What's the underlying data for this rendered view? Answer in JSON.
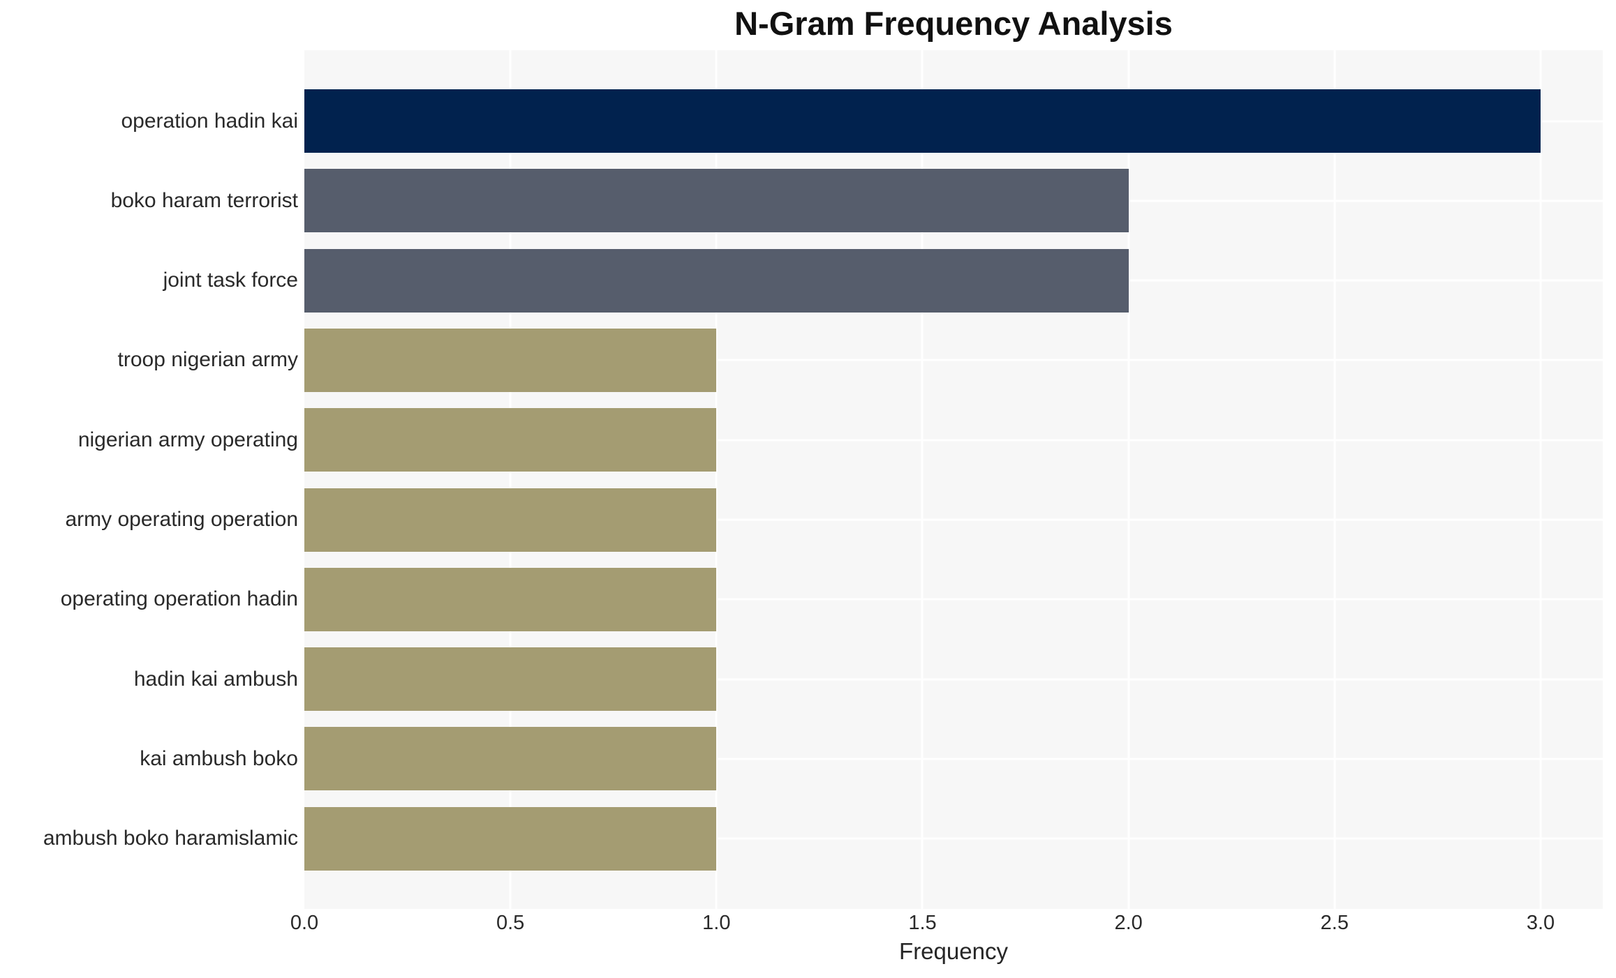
{
  "chart_data": {
    "type": "bar",
    "orientation": "horizontal",
    "title": "N-Gram Frequency Analysis",
    "xlabel": "Frequency",
    "ylabel": "",
    "categories": [
      "operation hadin kai",
      "boko haram terrorist",
      "joint task force",
      "troop nigerian army",
      "nigerian army operating",
      "army operating operation",
      "operating operation hadin",
      "hadin kai ambush",
      "kai ambush boko",
      "ambush boko haramislamic"
    ],
    "values": [
      3,
      2,
      2,
      1,
      1,
      1,
      1,
      1,
      1,
      1
    ],
    "bar_colors": [
      "#01224E",
      "#565D6C",
      "#565D6C",
      "#A49C72",
      "#A49C72",
      "#A49C72",
      "#A49C72",
      "#A49C72",
      "#A49C72",
      "#A49C72"
    ],
    "xticks": [
      "0.0",
      "0.5",
      "1.0",
      "1.5",
      "2.0",
      "2.5",
      "3.0"
    ],
    "xtick_values": [
      0,
      0.5,
      1,
      1.5,
      2,
      2.5,
      3
    ],
    "xlim": [
      0,
      3.15
    ],
    "grid": true,
    "legend": false,
    "plot_background": "#F7F7F7",
    "grid_color": "#FFFFFF",
    "text_color": "#2A2A2A"
  }
}
